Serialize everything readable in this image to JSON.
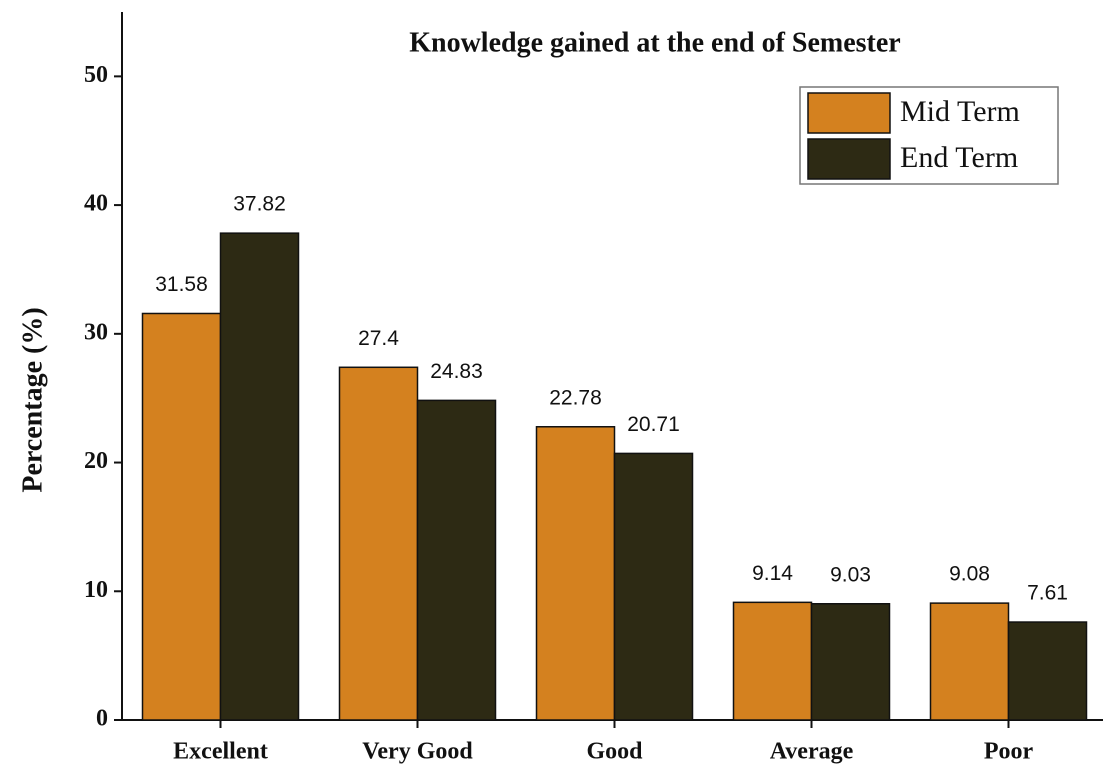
{
  "chart_data": {
    "type": "bar",
    "title": "Knowledge gained at the end of Semester",
    "y_label": "Percentage (%)",
    "categories": [
      "Excellent",
      "Very Good",
      "Good",
      "Average",
      "Poor"
    ],
    "series": [
      {
        "name": "Mid Term",
        "color": "#d4811f",
        "values": [
          31.58,
          27.4,
          22.78,
          9.14,
          9.08
        ]
      },
      {
        "name": "End Term",
        "color": "#2d2a14",
        "values": [
          37.82,
          24.83,
          20.71,
          9.03,
          7.61
        ]
      }
    ],
    "ylim": [
      0,
      55
    ],
    "yticks": [
      0,
      10,
      20,
      30,
      40,
      50
    ],
    "grid": false,
    "legend": "upper right"
  }
}
